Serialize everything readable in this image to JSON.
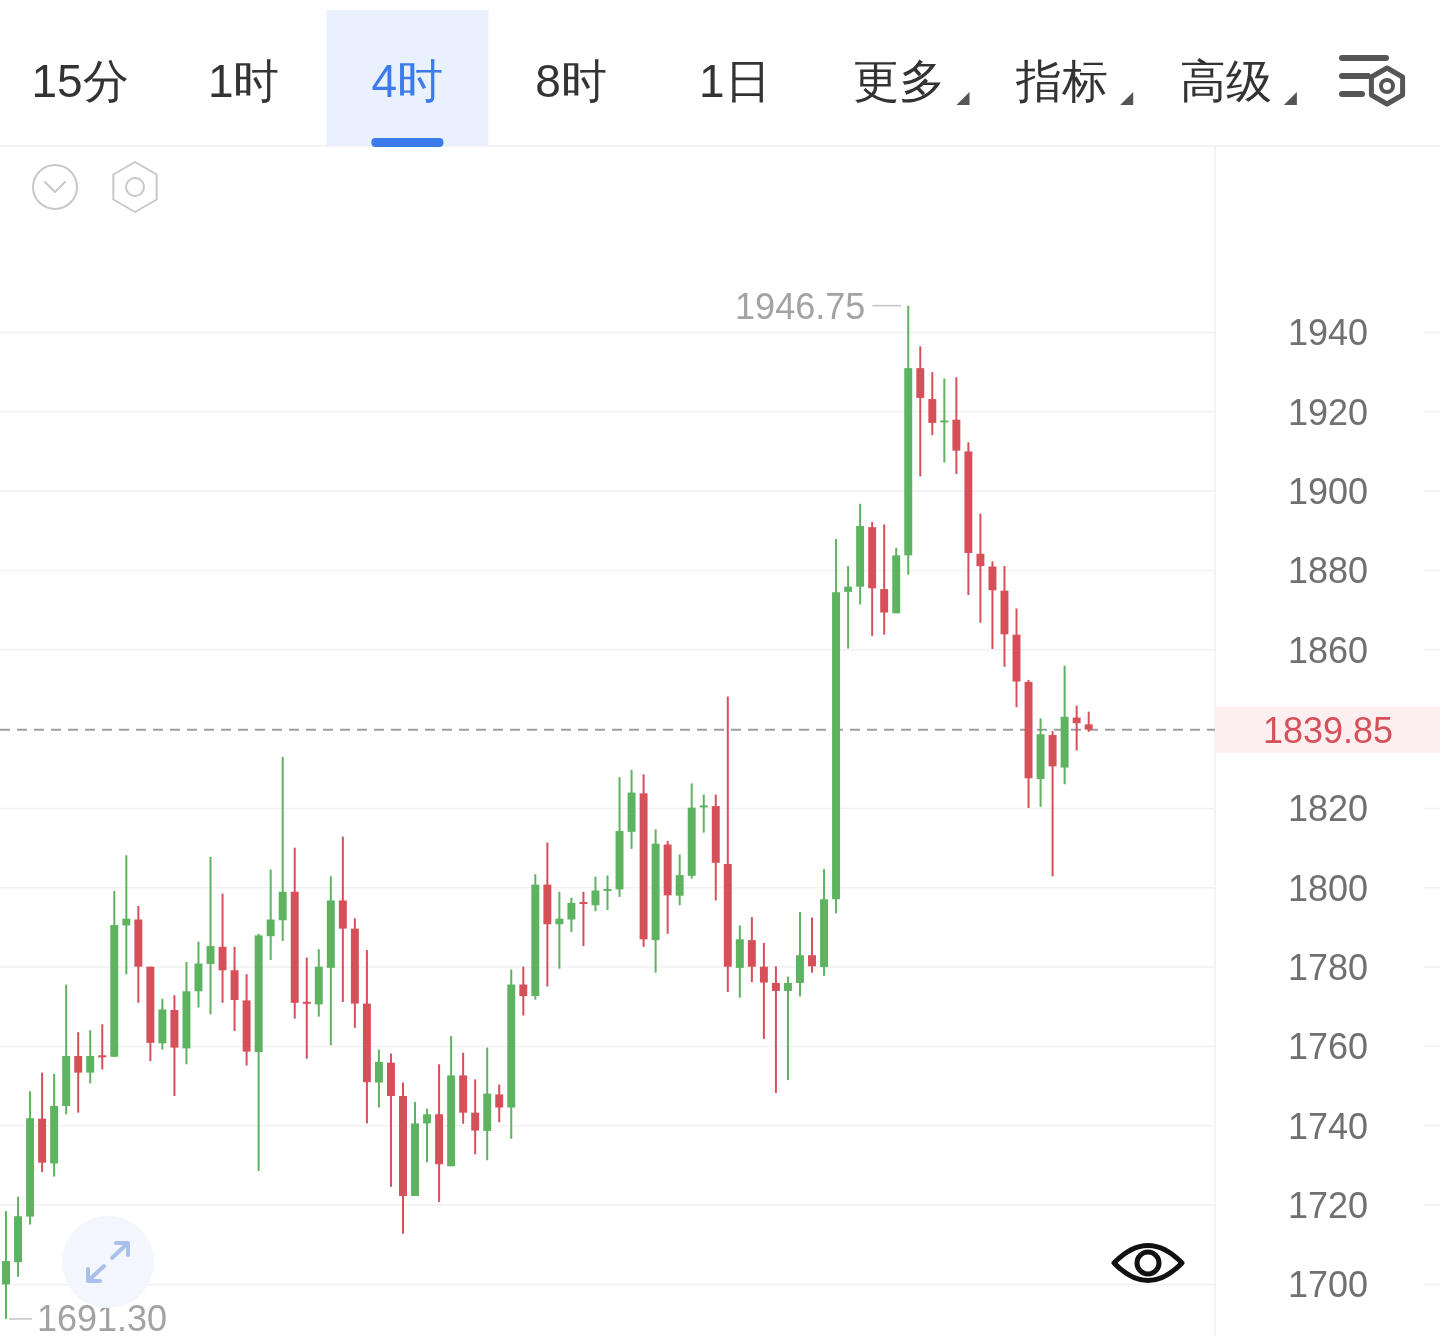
{
  "chart_data": {
    "type": "candlestick",
    "categories": [
      null,
      null,
      null,
      null,
      null,
      null,
      null,
      null,
      null,
      null,
      null,
      null,
      null,
      null,
      null,
      null,
      null,
      null,
      null,
      null,
      null,
      null,
      null,
      null,
      null,
      null,
      null,
      null,
      null,
      null,
      null,
      null,
      null,
      null,
      null,
      null,
      null,
      null,
      null,
      null,
      null,
      null,
      null,
      null,
      null,
      null,
      null,
      null,
      null,
      null,
      null,
      null,
      null,
      null,
      null,
      null,
      null,
      null,
      null,
      null,
      null,
      null,
      null,
      null,
      null,
      null,
      null,
      null,
      null,
      null,
      null,
      null,
      null,
      null,
      null,
      null,
      null,
      null,
      null,
      null,
      null,
      null,
      null,
      null,
      null,
      null,
      null,
      null,
      null,
      null,
      null,
      null,
      null,
      null,
      null,
      null,
      null,
      null,
      null,
      null,
      null
    ],
    "ohlc": [
      [
        1700.0,
        1718.5,
        1691.3,
        1705.9
      ],
      [
        1705.6,
        1722.1,
        1701.9,
        1717.2
      ],
      [
        1717.1,
        1748.7,
        1715.1,
        1741.9
      ],
      [
        1741.8,
        1753.4,
        1728.3,
        1730.7
      ],
      [
        1730.5,
        1753.1,
        1727.2,
        1745.0
      ],
      [
        1745.0,
        1775.6,
        1742.9,
        1757.6
      ],
      [
        1757.6,
        1763.6,
        1743.3,
        1753.4
      ],
      [
        1753.4,
        1764.1,
        1750.7,
        1757.6
      ],
      [
        1757.6,
        1765.6,
        1754.2,
        1757.4
      ],
      [
        1757.4,
        1799.2,
        1757.4,
        1790.6
      ],
      [
        1790.5,
        1808.2,
        1778.2,
        1792.2
      ],
      [
        1792.0,
        1795.4,
        1771.0,
        1780.1
      ],
      [
        1780.1,
        1780.1,
        1756.3,
        1760.9
      ],
      [
        1760.8,
        1772.0,
        1759.2,
        1769.3
      ],
      [
        1769.2,
        1772.9,
        1747.5,
        1759.7
      ],
      [
        1759.5,
        1781.3,
        1755.5,
        1773.9
      ],
      [
        1773.9,
        1786.4,
        1769.8,
        1780.9
      ],
      [
        1780.8,
        1807.8,
        1768.1,
        1785.3
      ],
      [
        1785.1,
        1798.5,
        1771.0,
        1779.2
      ],
      [
        1779.2,
        1785.1,
        1763.9,
        1771.7
      ],
      [
        1771.6,
        1778.2,
        1755.2,
        1758.7
      ],
      [
        1758.6,
        1788.4,
        1728.6,
        1788.0
      ],
      [
        1787.8,
        1804.6,
        1781.8,
        1792.0
      ],
      [
        1791.8,
        1833.0,
        1786.6,
        1799.0
      ],
      [
        1799.0,
        1810.1,
        1767.0,
        1771.0
      ],
      [
        1771.1,
        1782.4,
        1756.9,
        1770.9
      ],
      [
        1770.6,
        1784.5,
        1767.5,
        1780.1
      ],
      [
        1779.8,
        1802.9,
        1760.3,
        1796.8
      ],
      [
        1796.8,
        1812.9,
        1771.2,
        1789.7
      ],
      [
        1789.7,
        1792.3,
        1764.7,
        1770.8
      ],
      [
        1770.8,
        1784.3,
        1740.6,
        1751.0
      ],
      [
        1750.9,
        1759.2,
        1744.6,
        1756.1
      ],
      [
        1755.9,
        1758.2,
        1724.6,
        1747.5
      ],
      [
        1747.5,
        1750.9,
        1712.8,
        1722.3
      ],
      [
        1722.3,
        1746.0,
        1722.3,
        1740.6
      ],
      [
        1740.6,
        1744.3,
        1730.8,
        1742.9
      ],
      [
        1742.9,
        1755.5,
        1720.8,
        1730.3
      ],
      [
        1729.8,
        1762.6,
        1729.8,
        1752.7
      ],
      [
        1752.7,
        1758.4,
        1740.5,
        1743.3
      ],
      [
        1743.3,
        1751.7,
        1732.8,
        1738.8
      ],
      [
        1738.7,
        1759.7,
        1731.3,
        1748.1
      ],
      [
        1747.9,
        1750.4,
        1740.9,
        1744.6
      ],
      [
        1744.6,
        1779.4,
        1736.7,
        1775.6
      ],
      [
        1775.6,
        1780.1,
        1767.8,
        1772.7
      ],
      [
        1772.7,
        1803.4,
        1771.8,
        1800.8
      ],
      [
        1800.8,
        1811.4,
        1775.1,
        1790.8
      ],
      [
        1790.8,
        1799.0,
        1779.6,
        1792.2
      ],
      [
        1792.0,
        1797.5,
        1788.8,
        1796.2
      ],
      [
        1796.3,
        1799.0,
        1785.3,
        1796.0
      ],
      [
        1795.6,
        1802.8,
        1794.1,
        1799.3
      ],
      [
        1799.3,
        1803.1,
        1794.4,
        1799.6
      ],
      [
        1799.6,
        1827.9,
        1797.7,
        1814.3
      ],
      [
        1814.1,
        1829.7,
        1809.8,
        1824.0
      ],
      [
        1823.8,
        1828.6,
        1785.1,
        1787.0
      ],
      [
        1786.8,
        1814.7,
        1778.6,
        1811.1
      ],
      [
        1810.9,
        1811.8,
        1788.4,
        1798.1
      ],
      [
        1798.0,
        1808.4,
        1795.6,
        1803.2
      ],
      [
        1803.0,
        1826.3,
        1802.3,
        1820.2
      ],
      [
        1820.4,
        1823.5,
        1813.9,
        1820.6
      ],
      [
        1820.6,
        1823.5,
        1796.8,
        1806.3
      ],
      [
        1806.0,
        1848.2,
        1773.7,
        1780.1
      ],
      [
        1779.8,
        1790.5,
        1772.3,
        1787.0
      ],
      [
        1786.8,
        1792.6,
        1776.2,
        1780.1
      ],
      [
        1780.1,
        1786.1,
        1761.9,
        1776.1
      ],
      [
        1776.0,
        1780.2,
        1748.3,
        1774.0
      ],
      [
        1774.0,
        1777.6,
        1751.5,
        1776.0
      ],
      [
        1776.0,
        1793.9,
        1772.6,
        1783.0
      ],
      [
        1783.0,
        1792.5,
        1778.6,
        1780.2
      ],
      [
        1780.0,
        1804.7,
        1777.8,
        1797.1
      ],
      [
        1797.1,
        1887.9,
        1793.6,
        1874.5
      ],
      [
        1874.6,
        1881.1,
        1860.3,
        1875.9
      ],
      [
        1875.9,
        1896.8,
        1871.4,
        1891.2
      ],
      [
        1890.9,
        1892.2,
        1863.5,
        1875.5
      ],
      [
        1875.3,
        1891.6,
        1863.8,
        1869.4
      ],
      [
        1869.2,
        1885.7,
        1869.2,
        1883.8
      ],
      [
        1883.8,
        1946.75,
        1878.9,
        1931.0
      ],
      [
        1931.0,
        1936.5,
        1903.7,
        1923.5
      ],
      [
        1923.2,
        1930.0,
        1914.1,
        1917.2
      ],
      [
        1917.4,
        1928.4,
        1907.2,
        1917.7
      ],
      [
        1918.0,
        1928.7,
        1904.3,
        1910.2
      ],
      [
        1910.0,
        1912.3,
        1873.8,
        1884.4
      ],
      [
        1884.2,
        1894.3,
        1866.8,
        1881.1
      ],
      [
        1881.0,
        1882.3,
        1860.2,
        1875.0
      ],
      [
        1874.9,
        1881.1,
        1855.7,
        1863.9
      ],
      [
        1863.8,
        1870.4,
        1845.5,
        1852.0
      ],
      [
        1851.9,
        1852.4,
        1820.1,
        1827.6
      ],
      [
        1827.4,
        1842.7,
        1820.4,
        1838.7
      ],
      [
        1838.5,
        1839.5,
        1802.9,
        1830.6
      ],
      [
        1830.3,
        1856.0,
        1826.1,
        1843.1
      ],
      [
        1842.9,
        1845.9,
        1834.6,
        1841.5
      ],
      [
        1841.2,
        1844.4,
        1839.3,
        1839.85
      ],
      null,
      null,
      null,
      null,
      null,
      null,
      null,
      null,
      null,
      null
    ],
    "colors": [
      "#5db360",
      "#5db360",
      "#5db360",
      "#d6505a",
      "#5db360",
      "#5db360",
      "#d6505a",
      "#5db360",
      "#d6505a",
      "#5db360",
      "#5db360",
      "#d6505a",
      "#d6505a",
      "#5db360",
      "#d6505a",
      "#5db360",
      "#5db360",
      "#5db360",
      "#d6505a",
      "#d6505a",
      "#d6505a",
      "#5db360",
      "#5db360",
      "#5db360",
      "#d6505a",
      "#d6505a",
      "#5db360",
      "#5db360",
      "#d6505a",
      "#d6505a",
      "#d6505a",
      "#5db360",
      "#d6505a",
      "#d6505a",
      "#5db360",
      "#5db360",
      "#d6505a",
      "#5db360",
      "#d6505a",
      "#d6505a",
      "#5db360",
      "#d6505a",
      "#5db360",
      "#d6505a",
      "#5db360",
      "#d6505a",
      "#5db360",
      "#5db360",
      "#d6505a",
      "#5db360",
      "#5db360",
      "#5db360",
      "#5db360",
      "#d6505a",
      "#5db360",
      "#d6505a",
      "#5db360",
      "#5db360",
      "#5db360",
      "#d6505a",
      "#d6505a",
      "#5db360",
      "#d6505a",
      "#d6505a",
      "#d6505a",
      "#5db360",
      "#5db360",
      "#d6505a",
      "#5db360",
      "#5db360",
      "#5db360",
      "#5db360",
      "#d6505a",
      "#d6505a",
      "#5db360",
      "#5db360",
      "#d6505a",
      "#d6505a",
      "#5db360",
      "#d6505a",
      "#d6505a",
      "#d6505a",
      "#d6505a",
      "#d6505a",
      "#d6505a",
      "#d6505a",
      "#5db360",
      "#d6505a",
      "#5db360",
      "#d6505a",
      "#d6505a",
      null,
      null,
      null,
      null,
      null,
      null,
      null,
      null,
      null,
      null
    ],
    "ylim": [
      1687,
      1987
    ],
    "yticks": [
      1700,
      1720,
      1740,
      1760,
      1780,
      1800,
      1820,
      1860,
      1880,
      1900,
      1920,
      1940
    ],
    "grid": "y",
    "tick_labels": "y",
    "ref_lines": [
      {
        "axis": "y",
        "value": 1839.85,
        "label": "1839.85",
        "color": "#9e9e9e",
        "line_style": "dashed"
      }
    ],
    "annotations": [
      "15分",
      "1时",
      "4时",
      "8时",
      "1日",
      "更多",
      "指标",
      "高级",
      "1946.75",
      "1691.30"
    ]
  }
}
